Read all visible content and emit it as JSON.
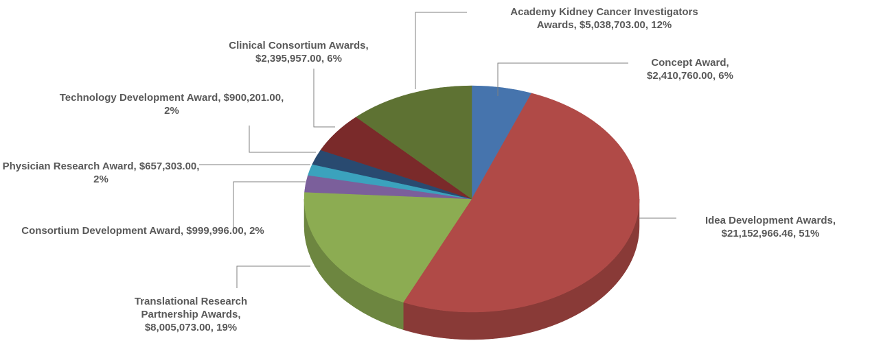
{
  "chart_data": {
    "type": "pie3d",
    "categories": [
      "Concept Award",
      "Idea Development Awards",
      "Translational Research Partnership Awards",
      "Consortium Development Award",
      "Physician Research Award",
      "Technology Development Award",
      "Clinical Consortium Awards",
      "Academy Kidney Cancer Investigators Awards"
    ],
    "values": [
      2410760.0,
      21152966.46,
      8005073.0,
      999996.0,
      657303.0,
      900201.0,
      2395957.0,
      5038703.0
    ],
    "value_labels": [
      "$2,410,760.00",
      "$21,152,966.46",
      "$8,005,073.00",
      "$999,996.00",
      "$657,303.00",
      "$900,201.00",
      "$2,395,957.00",
      "$5,038,703.00"
    ],
    "percentages": [
      6,
      51,
      19,
      2,
      2,
      2,
      6,
      12
    ],
    "percentage_labels": [
      "6%",
      "51%",
      "19%",
      "2%",
      "2%",
      "2%",
      "6%",
      "12%"
    ],
    "label_separator": ", ",
    "colors": [
      "#4674ad",
      "#b04a47",
      "#8cac52",
      "#7b5f9b",
      "#3ba2bd",
      "#294a70",
      "#7a2a2a",
      "#5e7233"
    ]
  }
}
